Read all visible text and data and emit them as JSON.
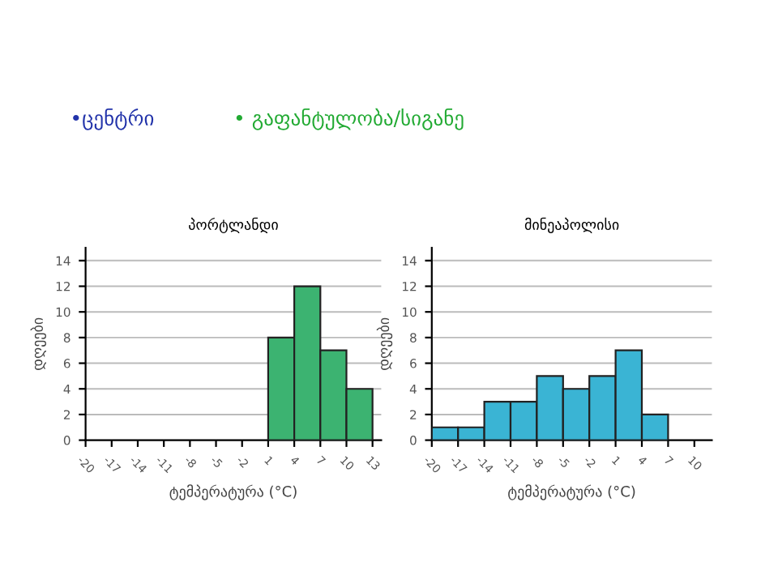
{
  "chart_data": [
    {
      "type": "histogram",
      "title": "პორტლანდი",
      "xlabel": "ტემპერატურა (°C)",
      "ylabel": "დღეები",
      "bins": [
        -20,
        -17,
        -14,
        -11,
        -8,
        -5,
        -2,
        1,
        4,
        7,
        10,
        13
      ],
      "values": [
        0,
        0,
        0,
        0,
        0,
        0,
        0,
        8,
        12,
        7,
        4
      ],
      "color": "#3cb371",
      "xlim": [
        -20,
        14
      ],
      "xticks": [
        -20,
        -17,
        -14,
        -11,
        -8,
        -5,
        -2,
        1,
        4,
        7,
        10,
        13
      ],
      "ylim": [
        0,
        15
      ],
      "yticks": [
        0,
        2,
        4,
        6,
        8,
        10,
        12,
        14
      ],
      "grid": "y",
      "annotations": [
        "•ცენტრი",
        "• გაფანტულობა/სიგანე"
      ]
    },
    {
      "type": "histogram",
      "title": "მინეაპოლისი",
      "xlabel": "ტემპერატურა (°C)",
      "ylabel": "დღეები",
      "bins": [
        -20,
        -17,
        -14,
        -11,
        -8,
        -5,
        -2,
        1,
        4,
        7,
        10
      ],
      "values": [
        1,
        1,
        3,
        3,
        5,
        4,
        5,
        7,
        2,
        0
      ],
      "color": "#3ab4d4",
      "xlim": [
        -20,
        12
      ],
      "xticks": [
        -20,
        -17,
        -14,
        -11,
        -8,
        -5,
        -2,
        1,
        4,
        7,
        10
      ],
      "ylim": [
        0,
        15
      ],
      "yticks": [
        0,
        2,
        4,
        6,
        8,
        10,
        12,
        14
      ],
      "grid": "y"
    }
  ]
}
